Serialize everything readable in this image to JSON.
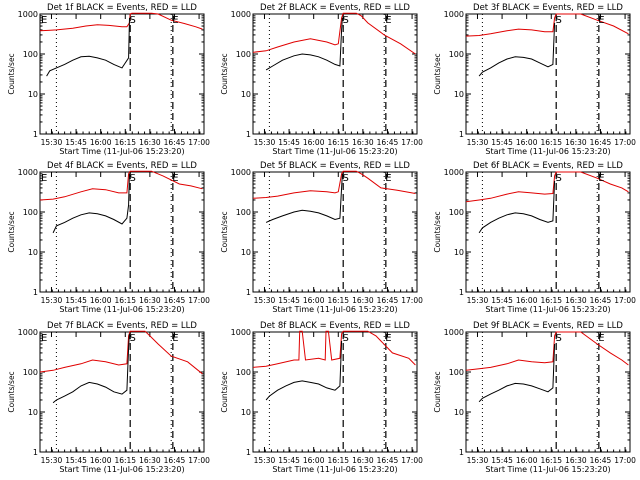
{
  "chart_data": {
    "type": "line",
    "layout": {
      "rows": 3,
      "cols": 3
    },
    "shared": {
      "xlabel": "Start Time (11-Jul-06 15:23:20)",
      "ylabel": "Counts/sec",
      "x_ticks": [
        {
          "min": 7,
          "label": "15:30"
        },
        {
          "min": 22,
          "label": "15:45"
        },
        {
          "min": 37,
          "label": "16:00"
        },
        {
          "min": 52,
          "label": "16:15"
        },
        {
          "min": 67,
          "label": "16:30"
        },
        {
          "min": 82,
          "label": "16:45"
        },
        {
          "min": 97,
          "label": "17:00"
        }
      ],
      "xlim_minutes": [
        0,
        100
      ],
      "ylim": [
        1,
        1000
      ],
      "y_ticks": [
        {
          "value": 1,
          "label": "1"
        },
        {
          "value": 10,
          "label": "10"
        },
        {
          "value": 100,
          "label": "100"
        },
        {
          "value": 1000,
          "label": "1000"
        }
      ],
      "colors": {
        "events": "#000000",
        "lld": "#e00000"
      }
    },
    "panels": [
      {
        "title": "Det 1f BLACK = Events, RED = LLD",
        "markers": [
          {
            "label": "E",
            "min": 0
          },
          {
            "label": "S",
            "min": 54
          },
          {
            "label": "E",
            "min": 80
          }
        ],
        "dotted_min": [
          10,
          80
        ],
        "dashed_min": [
          55,
          81
        ],
        "red": [
          [
            0,
            380
          ],
          [
            5,
            390
          ],
          [
            10,
            400
          ],
          [
            20,
            440
          ],
          [
            28,
            500
          ],
          [
            35,
            540
          ],
          [
            42,
            520
          ],
          [
            50,
            480
          ],
          [
            53,
            480
          ],
          [
            54.5,
            600
          ],
          [
            55,
            1000
          ],
          [
            56,
            1100
          ],
          [
            68,
            1100
          ],
          [
            72,
            1000
          ],
          [
            80,
            700
          ],
          [
            88,
            580
          ],
          [
            95,
            480
          ],
          [
            99,
            420
          ]
        ],
        "black": [
          [
            4,
            28
          ],
          [
            6,
            38
          ],
          [
            10,
            45
          ],
          [
            15,
            55
          ],
          [
            20,
            70
          ],
          [
            25,
            85
          ],
          [
            30,
            88
          ],
          [
            35,
            80
          ],
          [
            40,
            70
          ],
          [
            45,
            55
          ],
          [
            50,
            45
          ],
          [
            52,
            60
          ],
          [
            54,
            80
          ],
          [
            54.6,
            800
          ]
        ]
      },
      {
        "title": "Det 2f BLACK = Events, RED = LLD",
        "markers": [
          {
            "label": "S",
            "min": 54
          },
          {
            "label": "E",
            "min": 80
          }
        ],
        "dotted_min": [
          10,
          80
        ],
        "dashed_min": [
          55,
          81
        ],
        "red": [
          [
            0,
            110
          ],
          [
            8,
            120
          ],
          [
            15,
            150
          ],
          [
            25,
            200
          ],
          [
            35,
            240
          ],
          [
            45,
            200
          ],
          [
            50,
            170
          ],
          [
            52,
            180
          ],
          [
            54,
            800
          ],
          [
            55,
            1100
          ],
          [
            63,
            1100
          ],
          [
            66,
            900
          ],
          [
            70,
            600
          ],
          [
            80,
            300
          ],
          [
            90,
            180
          ],
          [
            99,
            100
          ]
        ],
        "black": [
          [
            8,
            40
          ],
          [
            12,
            50
          ],
          [
            18,
            70
          ],
          [
            25,
            90
          ],
          [
            30,
            100
          ],
          [
            35,
            95
          ],
          [
            40,
            85
          ],
          [
            45,
            70
          ],
          [
            50,
            55
          ],
          [
            53,
            50
          ],
          [
            54,
            400
          ],
          [
            54.5,
            800
          ]
        ]
      },
      {
        "title": "Det 3f BLACK = Events, RED = LLD",
        "markers": [
          {
            "label": "S",
            "min": 54
          },
          {
            "label": "E",
            "min": 80
          }
        ],
        "dotted_min": [
          10,
          80
        ],
        "dashed_min": [
          55,
          81
        ],
        "red": [
          [
            0,
            280
          ],
          [
            8,
            290
          ],
          [
            15,
            320
          ],
          [
            25,
            380
          ],
          [
            32,
            420
          ],
          [
            40,
            400
          ],
          [
            48,
            360
          ],
          [
            53,
            360
          ],
          [
            54,
            800
          ],
          [
            55,
            1000
          ],
          [
            70,
            1000
          ],
          [
            80,
            700
          ],
          [
            90,
            500
          ],
          [
            99,
            320
          ]
        ],
        "black": [
          [
            8,
            28
          ],
          [
            10,
            35
          ],
          [
            15,
            45
          ],
          [
            20,
            60
          ],
          [
            25,
            75
          ],
          [
            30,
            85
          ],
          [
            35,
            82
          ],
          [
            40,
            75
          ],
          [
            45,
            60
          ],
          [
            50,
            48
          ],
          [
            53,
            55
          ],
          [
            54,
            600
          ]
        ]
      },
      {
        "title": "Det 4f BLACK = Events, RED = LLD",
        "markers": [
          {
            "label": "E",
            "min": 0
          },
          {
            "label": "S",
            "min": 54
          },
          {
            "label": "E",
            "min": 80
          }
        ],
        "dotted_min": [
          10,
          80
        ],
        "dashed_min": [
          55,
          81
        ],
        "red": [
          [
            0,
            200
          ],
          [
            8,
            210
          ],
          [
            15,
            240
          ],
          [
            25,
            320
          ],
          [
            32,
            380
          ],
          [
            40,
            360
          ],
          [
            48,
            300
          ],
          [
            53,
            300
          ],
          [
            54,
            900
          ],
          [
            55,
            1100
          ],
          [
            68,
            1100
          ],
          [
            75,
            800
          ],
          [
            85,
            500
          ],
          [
            92,
            450
          ],
          [
            99,
            380
          ]
        ],
        "black": [
          [
            8,
            30
          ],
          [
            10,
            45
          ],
          [
            15,
            55
          ],
          [
            20,
            70
          ],
          [
            25,
            85
          ],
          [
            30,
            95
          ],
          [
            35,
            90
          ],
          [
            40,
            80
          ],
          [
            45,
            65
          ],
          [
            50,
            50
          ],
          [
            53,
            70
          ],
          [
            54,
            150
          ],
          [
            54.5,
            900
          ]
        ]
      },
      {
        "title": "Det 5f BLACK = Events, RED = LLD",
        "markers": [
          {
            "label": "S",
            "min": 54
          },
          {
            "label": "E",
            "min": 80
          }
        ],
        "dotted_min": [
          10,
          80
        ],
        "dashed_min": [
          55,
          81
        ],
        "red": [
          [
            0,
            220
          ],
          [
            8,
            230
          ],
          [
            15,
            250
          ],
          [
            25,
            300
          ],
          [
            35,
            340
          ],
          [
            45,
            320
          ],
          [
            50,
            300
          ],
          [
            52,
            320
          ],
          [
            54,
            900
          ],
          [
            55,
            1100
          ],
          [
            63,
            1100
          ],
          [
            66,
            900
          ],
          [
            70,
            700
          ],
          [
            78,
            400
          ],
          [
            88,
            350
          ],
          [
            99,
            290
          ]
        ],
        "black": [
          [
            8,
            55
          ],
          [
            12,
            65
          ],
          [
            18,
            80
          ],
          [
            25,
            100
          ],
          [
            30,
            110
          ],
          [
            35,
            105
          ],
          [
            40,
            95
          ],
          [
            45,
            80
          ],
          [
            50,
            65
          ],
          [
            53,
            70
          ],
          [
            54,
            400
          ],
          [
            54.5,
            900
          ]
        ]
      },
      {
        "title": "Det 6f BLACK = Events, RED = LLD",
        "markers": [
          {
            "label": "S",
            "min": 54
          },
          {
            "label": "E",
            "min": 80
          }
        ],
        "dotted_min": [
          10,
          80
        ],
        "dashed_min": [
          55,
          81
        ],
        "red": [
          [
            0,
            180
          ],
          [
            8,
            200
          ],
          [
            15,
            220
          ],
          [
            25,
            280
          ],
          [
            32,
            320
          ],
          [
            40,
            300
          ],
          [
            48,
            280
          ],
          [
            53,
            290
          ],
          [
            54,
            800
          ],
          [
            55,
            1000
          ],
          [
            70,
            1000
          ],
          [
            80,
            700
          ],
          [
            88,
            500
          ],
          [
            95,
            400
          ],
          [
            99,
            320
          ]
        ],
        "black": [
          [
            8,
            30
          ],
          [
            10,
            40
          ],
          [
            15,
            55
          ],
          [
            20,
            70
          ],
          [
            25,
            85
          ],
          [
            30,
            95
          ],
          [
            35,
            90
          ],
          [
            40,
            80
          ],
          [
            45,
            65
          ],
          [
            50,
            55
          ],
          [
            53,
            60
          ],
          [
            54,
            600
          ]
        ]
      },
      {
        "title": "Det 7f BLACK = Events, RED = LLD",
        "markers": [
          {
            "label": "E",
            "min": 0
          },
          {
            "label": "S",
            "min": 54
          },
          {
            "label": "E",
            "min": 80
          }
        ],
        "dotted_min": [
          10,
          80
        ],
        "dashed_min": [
          55,
          81
        ],
        "red": [
          [
            0,
            100
          ],
          [
            8,
            110
          ],
          [
            15,
            130
          ],
          [
            25,
            160
          ],
          [
            32,
            200
          ],
          [
            40,
            180
          ],
          [
            48,
            150
          ],
          [
            53,
            160
          ],
          [
            54,
            800
          ],
          [
            55,
            1100
          ],
          [
            64,
            1100
          ],
          [
            67,
            800
          ],
          [
            72,
            500
          ],
          [
            80,
            250
          ],
          [
            90,
            180
          ],
          [
            99,
            90
          ]
        ],
        "black": [
          [
            8,
            17
          ],
          [
            10,
            20
          ],
          [
            15,
            25
          ],
          [
            20,
            32
          ],
          [
            25,
            45
          ],
          [
            30,
            55
          ],
          [
            35,
            50
          ],
          [
            40,
            42
          ],
          [
            45,
            32
          ],
          [
            50,
            28
          ],
          [
            53,
            35
          ],
          [
            54,
            400
          ],
          [
            54.5,
            900
          ]
        ]
      },
      {
        "title": "Det 8f BLACK = Events, RED = LLD",
        "markers": [
          {
            "label": "S",
            "min": 54
          },
          {
            "label": "E",
            "min": 80
          }
        ],
        "dotted_min": [
          10,
          80
        ],
        "dashed_min": [
          55,
          81
        ],
        "red": [
          [
            0,
            130
          ],
          [
            8,
            140
          ],
          [
            15,
            160
          ],
          [
            25,
            200
          ],
          [
            28,
            200
          ],
          [
            28.5,
            1100
          ],
          [
            30,
            1100
          ],
          [
            32,
            200
          ],
          [
            40,
            220
          ],
          [
            44,
            200
          ],
          [
            44.5,
            1100
          ],
          [
            46,
            1100
          ],
          [
            48,
            200
          ],
          [
            53,
            220
          ],
          [
            54,
            900
          ],
          [
            55,
            1100
          ],
          [
            70,
            1100
          ],
          [
            75,
            800
          ],
          [
            85,
            300
          ],
          [
            95,
            220
          ],
          [
            99,
            150
          ]
        ],
        "black": [
          [
            8,
            20
          ],
          [
            10,
            25
          ],
          [
            15,
            35
          ],
          [
            20,
            45
          ],
          [
            25,
            55
          ],
          [
            30,
            60
          ],
          [
            35,
            55
          ],
          [
            40,
            50
          ],
          [
            45,
            40
          ],
          [
            50,
            35
          ],
          [
            53,
            45
          ],
          [
            54,
            600
          ]
        ]
      },
      {
        "title": "Det 9f BLACK = Events, RED = LLD",
        "markers": [
          {
            "label": "S",
            "min": 54
          },
          {
            "label": "E",
            "min": 80
          }
        ],
        "dotted_min": [
          10,
          80
        ],
        "dashed_min": [
          55,
          81
        ],
        "red": [
          [
            0,
            110
          ],
          [
            8,
            120
          ],
          [
            15,
            130
          ],
          [
            25,
            160
          ],
          [
            32,
            200
          ],
          [
            40,
            180
          ],
          [
            48,
            170
          ],
          [
            53,
            180
          ],
          [
            54,
            800
          ],
          [
            55,
            1000
          ],
          [
            70,
            1000
          ],
          [
            80,
            500
          ],
          [
            88,
            300
          ],
          [
            95,
            200
          ],
          [
            99,
            150
          ]
        ],
        "black": [
          [
            8,
            18
          ],
          [
            10,
            22
          ],
          [
            15,
            28
          ],
          [
            20,
            35
          ],
          [
            25,
            45
          ],
          [
            30,
            52
          ],
          [
            35,
            50
          ],
          [
            40,
            45
          ],
          [
            45,
            38
          ],
          [
            50,
            32
          ],
          [
            53,
            40
          ],
          [
            54,
            500
          ]
        ]
      }
    ]
  }
}
